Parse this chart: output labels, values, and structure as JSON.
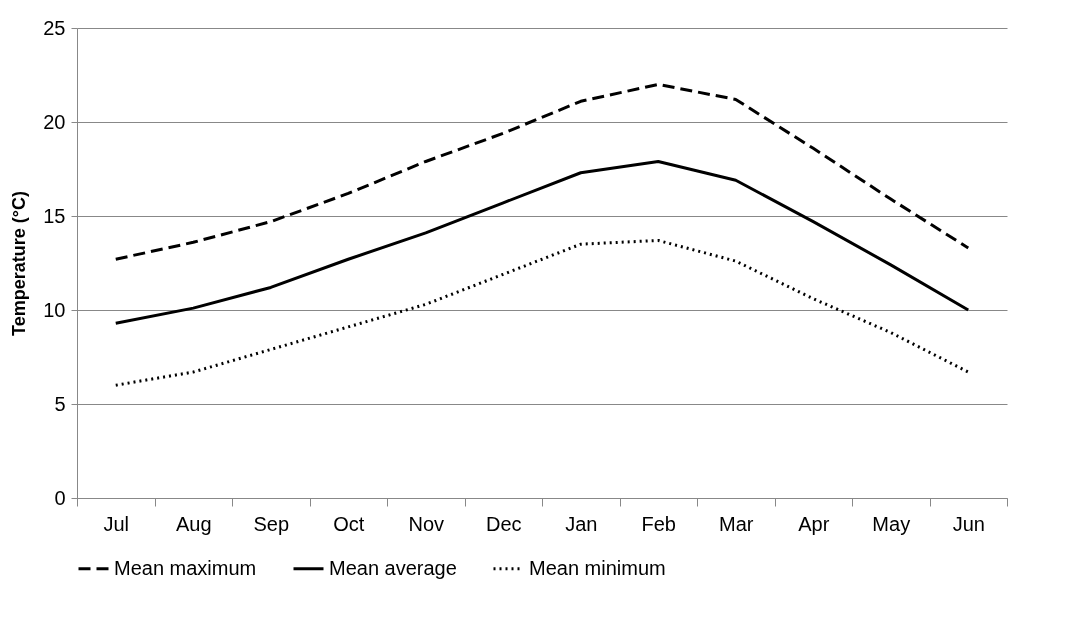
{
  "chart_data": {
    "type": "line",
    "ylabel": "Temperature (°C)",
    "categories": [
      "Jul",
      "Aug",
      "Sep",
      "Oct",
      "Nov",
      "Dec",
      "Jan",
      "Feb",
      "Mar",
      "Apr",
      "May",
      "Jun"
    ],
    "series": [
      {
        "name": "Mean maximum",
        "color": "#000000",
        "line_style": "dashed",
        "values": [
          12.7,
          13.6,
          14.7,
          16.2,
          17.9,
          19.4,
          21.1,
          22.0,
          21.2,
          18.6,
          15.9,
          13.3
        ]
      },
      {
        "name": "Mean average",
        "color": "#000000",
        "line_style": "solid",
        "values": [
          9.3,
          10.1,
          11.2,
          12.7,
          14.1,
          15.7,
          17.3,
          17.9,
          16.9,
          14.7,
          12.4,
          10.0
        ]
      },
      {
        "name": "Mean minimum",
        "color": "#000000",
        "line_style": "dotted",
        "values": [
          6.0,
          6.7,
          7.9,
          9.1,
          10.3,
          11.9,
          13.5,
          13.7,
          12.6,
          10.6,
          8.8,
          6.7
        ]
      }
    ],
    "ylim": [
      0,
      25
    ],
    "yticks": [
      0,
      5,
      10,
      15,
      20,
      25
    ],
    "grid": "y",
    "legend": "bottom"
  }
}
